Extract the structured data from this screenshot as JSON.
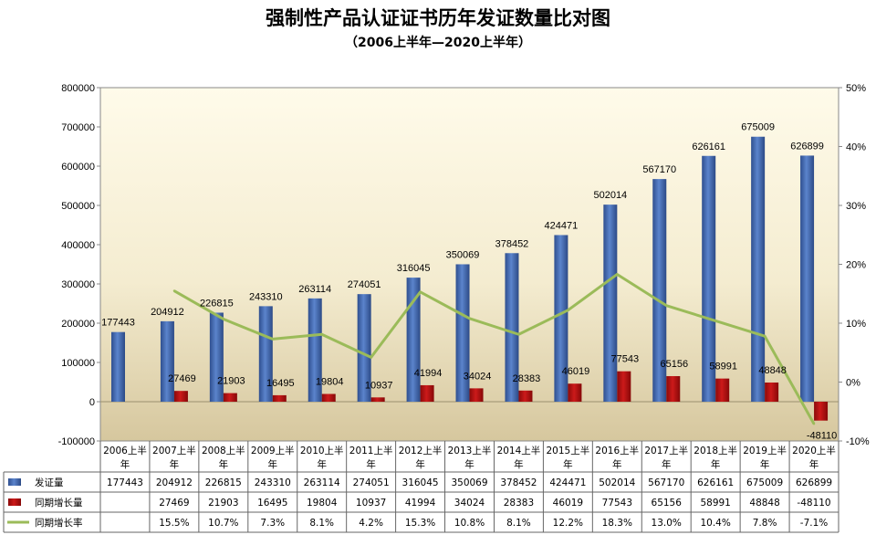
{
  "title": "强制性产品认证证书历年发证数量比对图",
  "subtitle": "（2006上半年—2020上半年）",
  "chart_data": {
    "type": "bar",
    "categories": [
      "2006上半年",
      "2007上半年",
      "2008上半年",
      "2009上半年",
      "2010上半年",
      "2011上半年",
      "2012上半年",
      "2013上半年",
      "2014上半年",
      "2015上半年",
      "2016上半年",
      "2017上半年",
      "2018上半年",
      "2019上半年",
      "2020上半年"
    ],
    "category_lines": [
      [
        "2006上半",
        "年"
      ],
      [
        "2007上半",
        "年"
      ],
      [
        "2008上半",
        "年"
      ],
      [
        "2009上半",
        "年"
      ],
      [
        "2010上半",
        "年"
      ],
      [
        "2011上半",
        "年"
      ],
      [
        "2012上半",
        "年"
      ],
      [
        "2013上半",
        "年"
      ],
      [
        "2014上半",
        "年"
      ],
      [
        "2015上半",
        "年"
      ],
      [
        "2016上半",
        "年"
      ],
      [
        "2017上半",
        "年"
      ],
      [
        "2018上半",
        "年"
      ],
      [
        "2019上半",
        "年"
      ],
      [
        "2020上半",
        "年"
      ]
    ],
    "series": [
      {
        "name": "发证量",
        "type": "bar",
        "axis": "left",
        "color": "#3b62a8",
        "values": [
          177443,
          204912,
          226815,
          243310,
          263114,
          274051,
          316045,
          350069,
          378452,
          424471,
          502014,
          567170,
          626161,
          675009,
          626899
        ],
        "table_values": [
          "177443",
          "204912",
          "226815",
          "243310",
          "263114",
          "274051",
          "316045",
          "350069",
          "378452",
          "424471",
          "502014",
          "567170",
          "626161",
          "675009",
          "626899"
        ]
      },
      {
        "name": "同期增长量",
        "type": "bar",
        "axis": "left",
        "color": "#b01010",
        "values": [
          null,
          27469,
          21903,
          16495,
          19804,
          10937,
          41994,
          34024,
          28383,
          46019,
          77543,
          65156,
          58991,
          48848,
          -48110
        ],
        "table_values": [
          "",
          "27469",
          "21903",
          "16495",
          "19804",
          "10937",
          "41994",
          "34024",
          "28383",
          "46019",
          "77543",
          "65156",
          "58991",
          "48848",
          "-48110"
        ]
      },
      {
        "name": "同期增长率",
        "type": "line",
        "axis": "right",
        "color": "#9bbb59",
        "values": [
          null,
          15.5,
          10.7,
          7.3,
          8.1,
          4.2,
          15.3,
          10.8,
          8.1,
          12.2,
          18.3,
          13.0,
          10.4,
          7.8,
          -7.1
        ],
        "table_values": [
          "",
          "15.5%",
          "10.7%",
          "7.3%",
          "8.1%",
          "4.2%",
          "15.3%",
          "10.8%",
          "8.1%",
          "12.2%",
          "18.3%",
          "13.0%",
          "10.4%",
          "7.8%",
          "-7.1%"
        ]
      }
    ],
    "y_left": {
      "min": -100000,
      "max": 800000,
      "step": 100000,
      "tick_labels": [
        "-100000",
        "0",
        "100000",
        "200000",
        "300000",
        "400000",
        "500000",
        "600000",
        "700000",
        "800000"
      ]
    },
    "y_right": {
      "min": -10,
      "max": 50,
      "step": 10,
      "tick_labels": [
        "-10%",
        "0%",
        "10%",
        "20%",
        "30%",
        "40%",
        "50%"
      ]
    },
    "legend": "data-table",
    "grid": false
  },
  "colors": {
    "bar_primary": "#3b62a8",
    "bar_secondary": "#b01010",
    "line": "#9bbb59",
    "plot_bg_top": "#fffbea",
    "plot_bg_bottom": "#d7c8a0"
  }
}
